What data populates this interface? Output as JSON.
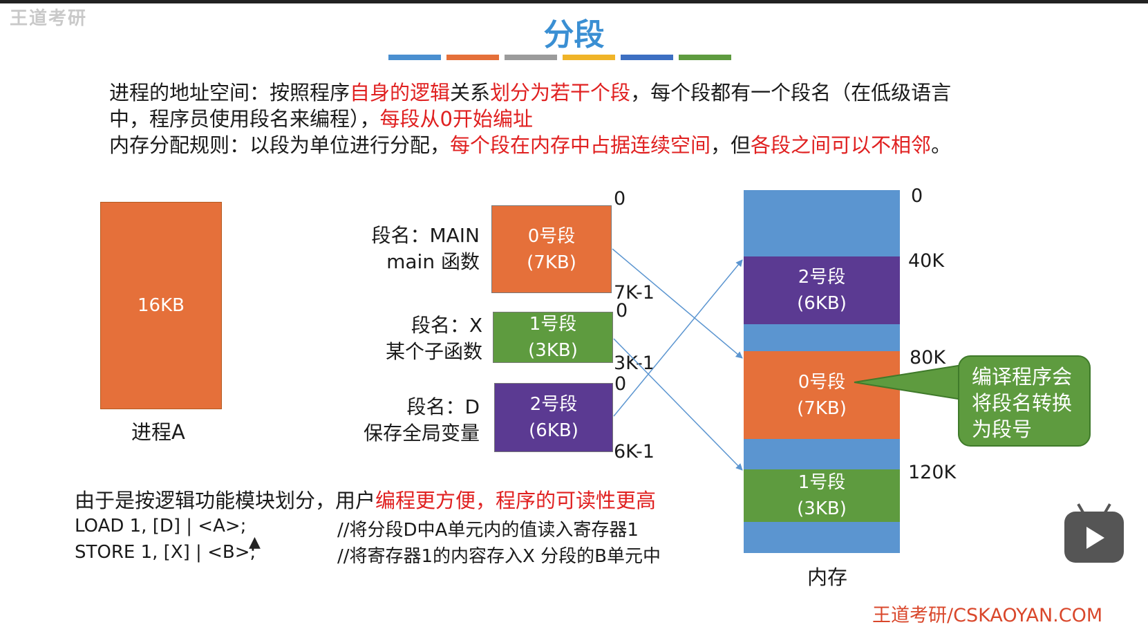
{
  "watermark": "王道考研",
  "title": "分段",
  "stripe_colors": [
    "#4a8fd0",
    "#e5703a",
    "#9b9b9b",
    "#f0b428",
    "#3d6fc2",
    "#5e9b3f"
  ],
  "intro": {
    "line1": [
      {
        "text": "进程的地址空间：按照程序",
        "red": false
      },
      {
        "text": "自身的逻辑",
        "red": true
      },
      {
        "text": "关系",
        "red": false
      },
      {
        "text": "划分为若干个段",
        "red": true
      },
      {
        "text": "，每个段都有一个段名（在低级语言",
        "red": false
      }
    ],
    "line2": [
      {
        "text": "中，程序员使用段名来编程），",
        "red": false
      },
      {
        "text": "每段从0开始编址",
        "red": true
      }
    ],
    "line3": [
      {
        "text": "内存分配规则：以段为单位进行分配，",
        "red": false
      },
      {
        "text": "每个段在内存中占据连续空间",
        "red": true
      },
      {
        "text": "，但",
        "red": false
      },
      {
        "text": "各段之间可以不相邻",
        "red": true
      },
      {
        "text": "。",
        "red": false
      }
    ]
  },
  "process": {
    "size_label": "16KB",
    "name": "进程A"
  },
  "segments": [
    {
      "name_line1": "段名：MAIN",
      "name_line2": "main 函数",
      "seg_label": "0号段",
      "size": "(7KB)",
      "start": "0",
      "end": "7K-1"
    },
    {
      "name_line1": "段名：X",
      "name_line2": "某个子函数",
      "seg_label": "1号段",
      "size": "(3KB)",
      "start": "0",
      "end": "3K-1"
    },
    {
      "name_line1": "段名：D",
      "name_line2": "保存全局变量",
      "seg_label": "2号段",
      "size": "(6KB)",
      "start": "0",
      "end": "6K-1"
    }
  ],
  "memory": {
    "label": "内存",
    "addresses": [
      "0",
      "40K",
      "80K",
      "120K"
    ],
    "blocks": [
      {
        "seg_label": "2号段",
        "size": "(6KB)"
      },
      {
        "seg_label": "0号段",
        "size": "(7KB)"
      },
      {
        "seg_label": "1号段",
        "size": "(3KB)"
      }
    ]
  },
  "callout": "编译程序会将段名转换为段号",
  "bottom": {
    "line1": [
      {
        "text": "由于是按逻辑功能模块划分，用户",
        "red": false
      },
      {
        "text": "编程更方便，程序的可读性更高",
        "red": true
      }
    ],
    "code": [
      {
        "instr": "LOAD 1, [D] | <A>;",
        "comment": "//将分段D中A单元内的值读入寄存器1"
      },
      {
        "instr": "STORE 1, [X] | <B>;",
        "comment": "//将寄存器1的内容存入X 分段的B单元中"
      }
    ]
  },
  "footer": "王道考研/CSKAOYAN.COM"
}
